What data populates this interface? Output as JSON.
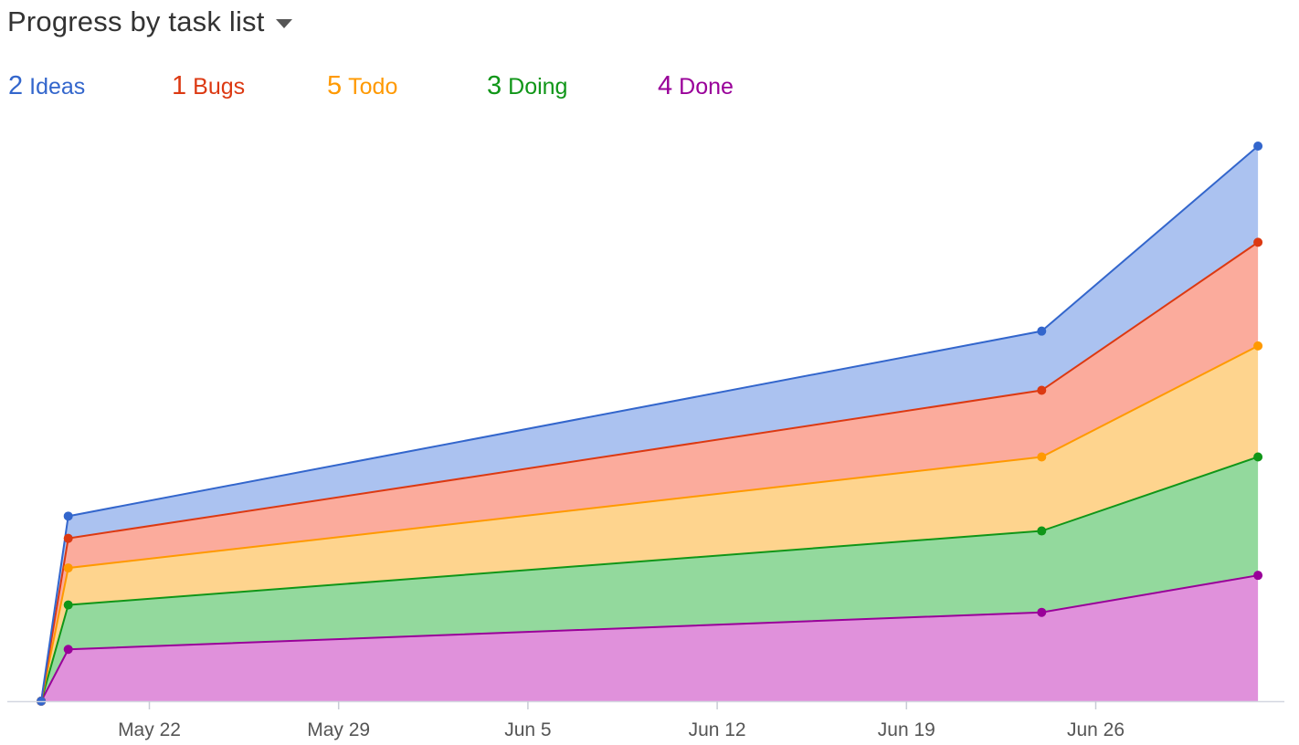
{
  "header": {
    "title": "Progress by task list",
    "dropdown_icon": "caret-down-icon"
  },
  "legend": [
    {
      "count": "2",
      "label": "Ideas",
      "color": "#3366cc"
    },
    {
      "count": "1",
      "label": "Bugs",
      "color": "#dc3912"
    },
    {
      "count": "5",
      "label": "Todo",
      "color": "#ff9900"
    },
    {
      "count": "3",
      "label": "Doing",
      "color": "#109618"
    },
    {
      "count": "4",
      "label": "Done",
      "color": "#990099"
    }
  ],
  "chart_data": {
    "type": "area",
    "stacked": true,
    "x": [
      "May 18",
      "May 19",
      "Jun 24",
      "Jul 2"
    ],
    "x_ticks": [
      "May 22",
      "May 29",
      "Jun 5",
      "Jun 12",
      "Jun 19",
      "Jun 26"
    ],
    "series": [
      {
        "name": "Done",
        "color": "#990099",
        "fill": "#e091db",
        "values": [
          0,
          1.4,
          2.4,
          3.4
        ]
      },
      {
        "name": "Doing",
        "color": "#109618",
        "fill": "#93d99d",
        "values": [
          0,
          1.2,
          2.2,
          3.2
        ]
      },
      {
        "name": "Todo",
        "color": "#ff9900",
        "fill": "#fed48e",
        "values": [
          0,
          1.0,
          2.0,
          3.0
        ]
      },
      {
        "name": "Bugs",
        "color": "#dc3912",
        "fill": "#fbab9c",
        "values": [
          0,
          0.8,
          1.8,
          2.8
        ]
      },
      {
        "name": "Ideas",
        "color": "#3366cc",
        "fill": "#abc2f0",
        "values": [
          0,
          0.6,
          1.6,
          2.6
        ]
      }
    ],
    "grid": false,
    "legend_position": "top"
  }
}
